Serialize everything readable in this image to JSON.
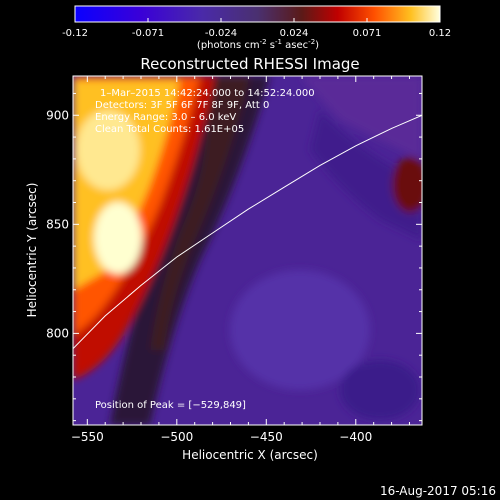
{
  "colorbar": {
    "ticks": [
      "-0.12",
      "-0.071",
      "-0.024",
      "0.024",
      "0.071",
      "0.12"
    ],
    "units_prefix": "(photons cm",
    "units_exp1": "-2",
    "units_mid": " s",
    "units_exp2": "-1",
    "units_mid2": " asec",
    "units_exp3": "-2",
    "units_suffix": ")"
  },
  "chart_data": {
    "type": "heatmap",
    "title": "Reconstructed RHESSI Image",
    "xlabel": "Heliocentric X (arcsec)",
    "ylabel": "Heliocentric Y (arcsec)",
    "xlim": [
      -558,
      -363
    ],
    "ylim": [
      758,
      918
    ],
    "x_ticks": [
      "−550",
      "−500",
      "−450",
      "−400"
    ],
    "y_ticks": [
      "800",
      "850",
      "900"
    ],
    "x_tick_values": [
      -550,
      -500,
      -450,
      -400
    ],
    "y_tick_values": [
      800,
      850,
      900
    ],
    "clim": [
      -0.12,
      0.12
    ],
    "colormap": "rainbow-hot",
    "info_lines": [
      "1–Mar–2015 14:42:24.000 to 14:52:24.000",
      "Detectors: 3F 5F 6F 7F 8F 9F, Att 0",
      "Energy Range: 3.0 – 6.0 keV",
      "Clean    Total Counts: 1.61E+05"
    ],
    "peak_text": "Position of Peak = [−529,849]",
    "peak": [
      -529,
      849
    ],
    "limb_points": [
      [
        -558,
        793
      ],
      [
        -540,
        808
      ],
      [
        -520,
        822
      ],
      [
        -500,
        835
      ],
      [
        -480,
        846
      ],
      [
        -460,
        857
      ],
      [
        -440,
        867
      ],
      [
        -420,
        877
      ],
      [
        -400,
        886
      ],
      [
        -380,
        894
      ],
      [
        -363,
        900
      ]
    ]
  },
  "footer": {
    "date": "16-Aug-2017 05:16"
  }
}
